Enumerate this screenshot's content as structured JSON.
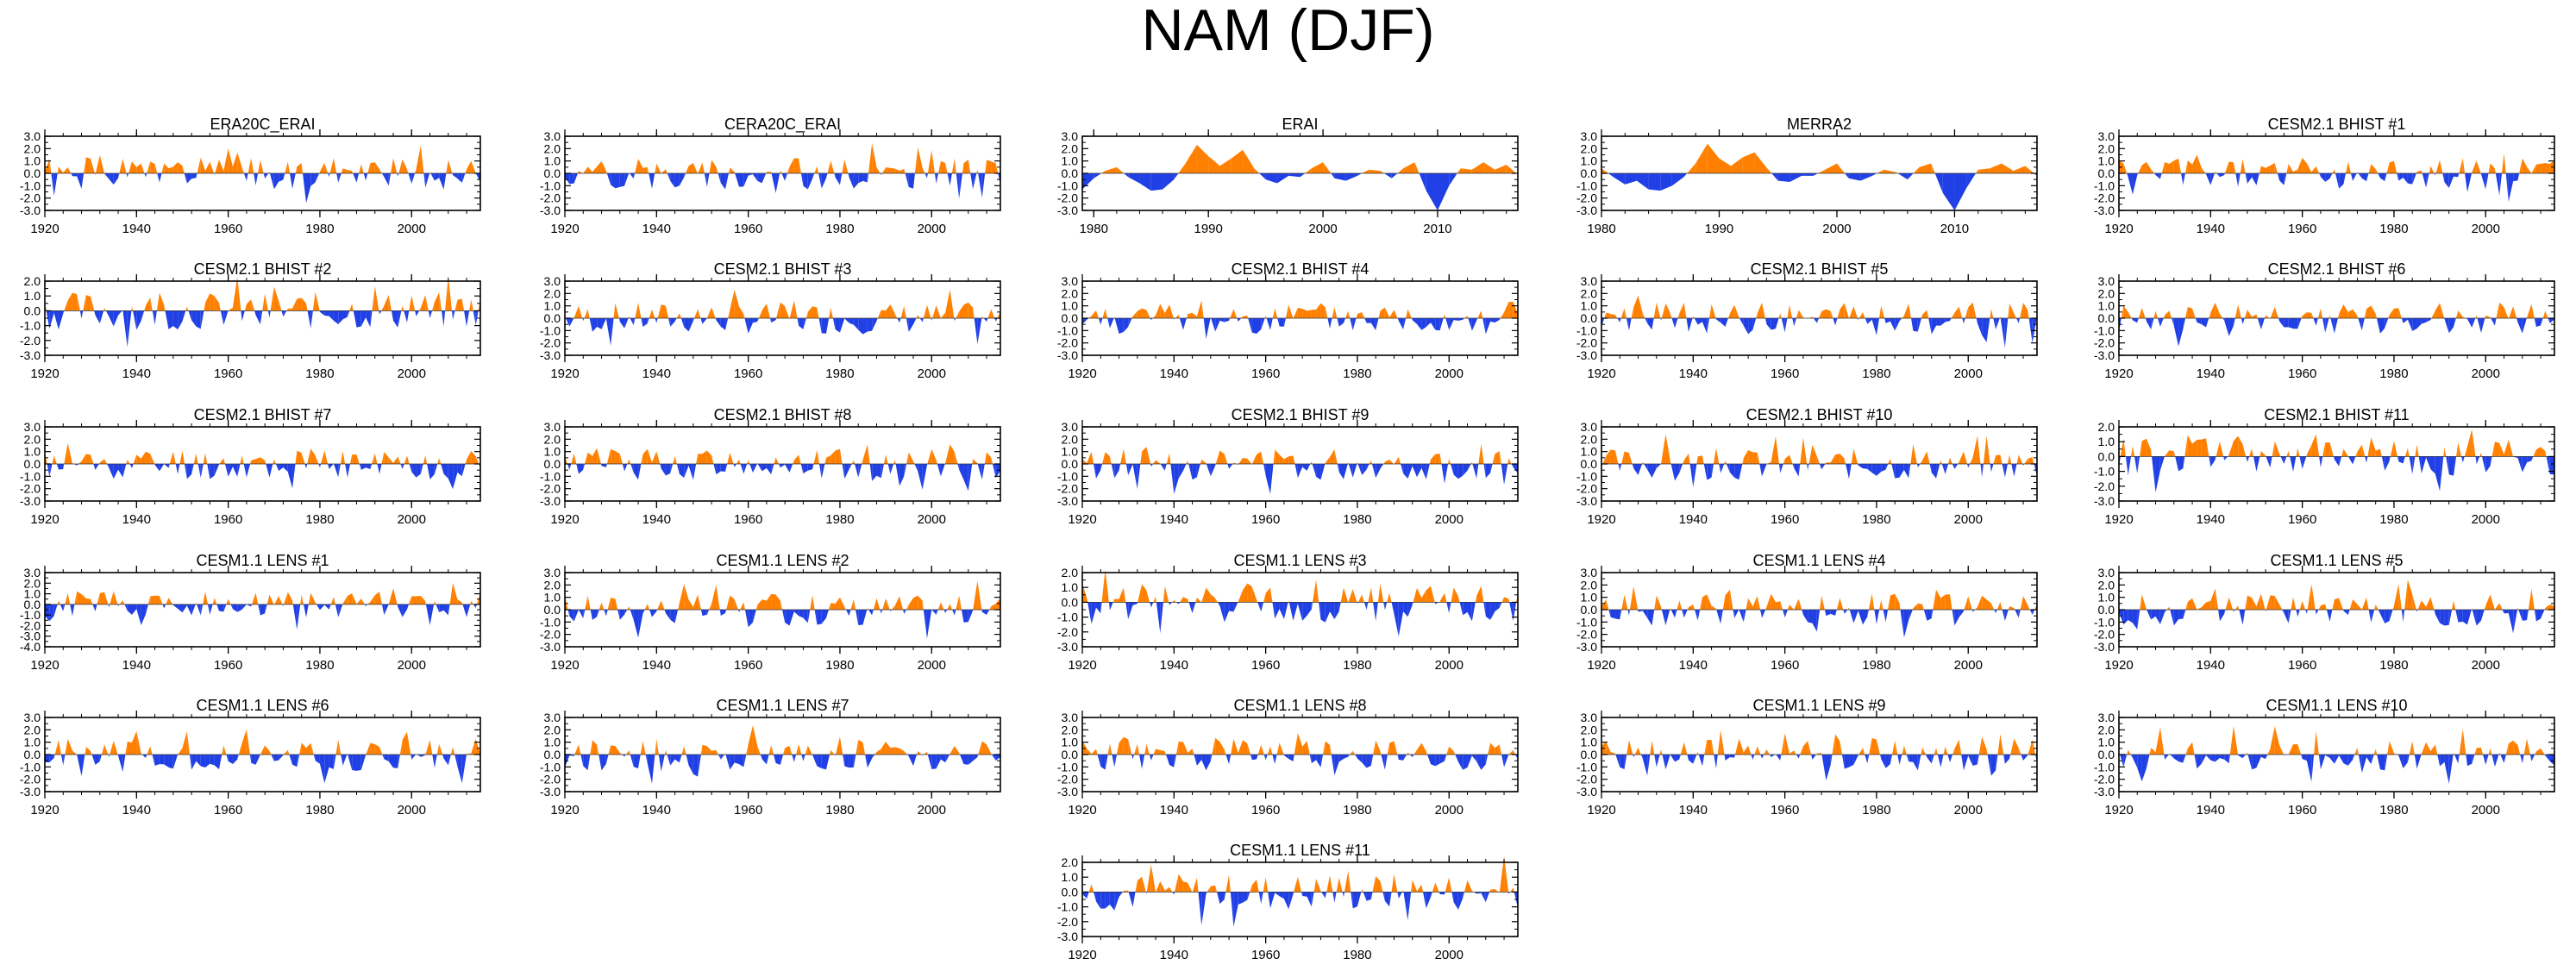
{
  "title": "NAM (DJF)",
  "colors": {
    "positive": "#ff8000",
    "negative": "#2040e6",
    "axis": "#000000"
  },
  "chart_data": [
    {
      "type": "area",
      "title": "ERA20C_ERAI",
      "x_range": [
        1920,
        2015
      ],
      "xticks": [
        1920,
        1940,
        1960,
        1980,
        2000
      ],
      "ylim": [
        -3,
        3
      ],
      "yticks": [
        -3,
        -2,
        -1,
        0,
        1,
        2,
        3
      ],
      "seed": 1
    },
    {
      "type": "area",
      "title": "CERA20C_ERAI",
      "x_range": [
        1920,
        2015
      ],
      "xticks": [
        1920,
        1940,
        1960,
        1980,
        2000
      ],
      "ylim": [
        -3,
        3
      ],
      "yticks": [
        -3,
        -2,
        -1,
        0,
        1,
        2,
        3
      ],
      "seed": 2
    },
    {
      "type": "area",
      "title": "ERAI",
      "x_range": [
        1979,
        2017
      ],
      "xticks": [
        1980,
        1990,
        2000,
        2010
      ],
      "ylim": [
        -3,
        3
      ],
      "yticks": [
        -3,
        -2,
        -1,
        0,
        1,
        2,
        3
      ],
      "values": [
        -1.3,
        -0.4,
        0.2,
        0.5,
        -0.3,
        -0.8,
        -1.4,
        -1.3,
        -0.5,
        0.8,
        2.3,
        1.4,
        0.6,
        1.2,
        1.9,
        0.4,
        -0.5,
        -0.8,
        -0.2,
        -0.3,
        0.4,
        0.9,
        -0.4,
        -0.6,
        -0.2,
        0.3,
        0.2,
        -0.4,
        0.4,
        0.9,
        -1.4,
        -3.0,
        -1.0,
        0.4,
        0.3,
        0.9,
        0.3,
        0.7,
        -0.1
      ]
    },
    {
      "type": "area",
      "title": "MERRA2",
      "x_range": [
        1980,
        2017
      ],
      "xticks": [
        1980,
        1990,
        2000,
        2010
      ],
      "ylim": [
        -3,
        3
      ],
      "yticks": [
        -3,
        -2,
        -1,
        0,
        1,
        2,
        3
      ],
      "values": [
        0.4,
        -0.3,
        -0.9,
        -0.6,
        -1.3,
        -1.4,
        -1.0,
        -0.3,
        0.8,
        2.4,
        1.2,
        0.6,
        1.3,
        1.7,
        0.5,
        -0.6,
        -0.7,
        -0.2,
        -0.2,
        0.3,
        0.8,
        -0.4,
        -0.6,
        -0.2,
        0.3,
        0.1,
        -0.5,
        0.5,
        0.8,
        -1.6,
        -3.0,
        -1.2,
        0.3,
        0.4,
        0.8,
        0.2,
        0.6,
        -0.2
      ]
    },
    {
      "type": "area",
      "title": "CESM2.1 BHIST #1",
      "x_range": [
        1920,
        2015
      ],
      "xticks": [
        1920,
        1940,
        1960,
        1980,
        2000
      ],
      "ylim": [
        -3,
        3
      ],
      "yticks": [
        -3,
        -2,
        -1,
        0,
        1,
        2,
        3
      ],
      "seed": 5
    },
    {
      "type": "area",
      "title": "CESM2.1 BHIST #2",
      "x_range": [
        1920,
        2015
      ],
      "xticks": [
        1920,
        1940,
        1960,
        1980,
        2000
      ],
      "ylim": [
        -3,
        2
      ],
      "yticks": [
        -3,
        -2,
        -1,
        0,
        1,
        2
      ],
      "seed": 6
    },
    {
      "type": "area",
      "title": "CESM2.1 BHIST #3",
      "x_range": [
        1920,
        2015
      ],
      "xticks": [
        1920,
        1940,
        1960,
        1980,
        2000
      ],
      "ylim": [
        -3,
        3
      ],
      "yticks": [
        -3,
        -2,
        -1,
        0,
        1,
        2,
        3
      ],
      "seed": 7
    },
    {
      "type": "area",
      "title": "CESM2.1 BHIST #4",
      "x_range": [
        1920,
        2015
      ],
      "xticks": [
        1920,
        1940,
        1960,
        1980,
        2000
      ],
      "ylim": [
        -3,
        3
      ],
      "yticks": [
        -3,
        -2,
        -1,
        0,
        1,
        2,
        3
      ],
      "seed": 8
    },
    {
      "type": "area",
      "title": "CESM2.1 BHIST #5",
      "x_range": [
        1920,
        2015
      ],
      "xticks": [
        1920,
        1940,
        1960,
        1980,
        2000
      ],
      "ylim": [
        -3,
        3
      ],
      "yticks": [
        -3,
        -2,
        -1,
        0,
        1,
        2,
        3
      ],
      "seed": 9
    },
    {
      "type": "area",
      "title": "CESM2.1 BHIST #6",
      "x_range": [
        1920,
        2015
      ],
      "xticks": [
        1920,
        1940,
        1960,
        1980,
        2000
      ],
      "ylim": [
        -3,
        3
      ],
      "yticks": [
        -3,
        -2,
        -1,
        0,
        1,
        2,
        3
      ],
      "seed": 10
    },
    {
      "type": "area",
      "title": "CESM2.1 BHIST #7",
      "x_range": [
        1920,
        2015
      ],
      "xticks": [
        1920,
        1940,
        1960,
        1980,
        2000
      ],
      "ylim": [
        -3,
        3
      ],
      "yticks": [
        -3,
        -2,
        -1,
        0,
        1,
        2,
        3
      ],
      "seed": 11
    },
    {
      "type": "area",
      "title": "CESM2.1 BHIST #8",
      "x_range": [
        1920,
        2015
      ],
      "xticks": [
        1920,
        1940,
        1960,
        1980,
        2000
      ],
      "ylim": [
        -3,
        3
      ],
      "yticks": [
        -3,
        -2,
        -1,
        0,
        1,
        2,
        3
      ],
      "seed": 12
    },
    {
      "type": "area",
      "title": "CESM2.1 BHIST #9",
      "x_range": [
        1920,
        2015
      ],
      "xticks": [
        1920,
        1940,
        1960,
        1980,
        2000
      ],
      "ylim": [
        -3,
        3
      ],
      "yticks": [
        -3,
        -2,
        -1,
        0,
        1,
        2,
        3
      ],
      "seed": 13
    },
    {
      "type": "area",
      "title": "CESM2.1 BHIST #10",
      "x_range": [
        1920,
        2015
      ],
      "xticks": [
        1920,
        1940,
        1960,
        1980,
        2000
      ],
      "ylim": [
        -3,
        3
      ],
      "yticks": [
        -3,
        -2,
        -1,
        0,
        1,
        2,
        3
      ],
      "seed": 14
    },
    {
      "type": "area",
      "title": "CESM2.1 BHIST #11",
      "x_range": [
        1920,
        2015
      ],
      "xticks": [
        1920,
        1940,
        1960,
        1980,
        2000
      ],
      "ylim": [
        -3,
        2
      ],
      "yticks": [
        -3,
        -2,
        -1,
        0,
        1,
        2
      ],
      "seed": 15
    },
    {
      "type": "area",
      "title": "CESM1.1 LENS #1",
      "x_range": [
        1920,
        2015
      ],
      "xticks": [
        1920,
        1940,
        1960,
        1980,
        2000
      ],
      "ylim": [
        -4,
        3
      ],
      "yticks": [
        -4,
        -3,
        -2,
        -1,
        0,
        1,
        2,
        3
      ],
      "seed": 16
    },
    {
      "type": "area",
      "title": "CESM1.1 LENS #2",
      "x_range": [
        1920,
        2015
      ],
      "xticks": [
        1920,
        1940,
        1960,
        1980,
        2000
      ],
      "ylim": [
        -3,
        3
      ],
      "yticks": [
        -3,
        -2,
        -1,
        0,
        1,
        2,
        3
      ],
      "seed": 17
    },
    {
      "type": "area",
      "title": "CESM1.1 LENS #3",
      "x_range": [
        1920,
        2015
      ],
      "xticks": [
        1920,
        1940,
        1960,
        1980,
        2000
      ],
      "ylim": [
        -3,
        2
      ],
      "yticks": [
        -3,
        -2,
        -1,
        0,
        1,
        2
      ],
      "seed": 18
    },
    {
      "type": "area",
      "title": "CESM1.1 LENS #4",
      "x_range": [
        1920,
        2015
      ],
      "xticks": [
        1920,
        1940,
        1960,
        1980,
        2000
      ],
      "ylim": [
        -3,
        3
      ],
      "yticks": [
        -3,
        -2,
        -1,
        0,
        1,
        2,
        3
      ],
      "seed": 19
    },
    {
      "type": "area",
      "title": "CESM1.1 LENS #5",
      "x_range": [
        1920,
        2015
      ],
      "xticks": [
        1920,
        1940,
        1960,
        1980,
        2000
      ],
      "ylim": [
        -3,
        3
      ],
      "yticks": [
        -3,
        -2,
        -1,
        0,
        1,
        2,
        3
      ],
      "seed": 20
    },
    {
      "type": "area",
      "title": "CESM1.1 LENS #6",
      "x_range": [
        1920,
        2015
      ],
      "xticks": [
        1920,
        1940,
        1960,
        1980,
        2000
      ],
      "ylim": [
        -3,
        3
      ],
      "yticks": [
        -3,
        -2,
        -1,
        0,
        1,
        2,
        3
      ],
      "seed": 21
    },
    {
      "type": "area",
      "title": "CESM1.1 LENS #7",
      "x_range": [
        1920,
        2015
      ],
      "xticks": [
        1920,
        1940,
        1960,
        1980,
        2000
      ],
      "ylim": [
        -3,
        3
      ],
      "yticks": [
        -3,
        -2,
        -1,
        0,
        1,
        2,
        3
      ],
      "seed": 22
    },
    {
      "type": "area",
      "title": "CESM1.1 LENS #8",
      "x_range": [
        1920,
        2015
      ],
      "xticks": [
        1920,
        1940,
        1960,
        1980,
        2000
      ],
      "ylim": [
        -3,
        3
      ],
      "yticks": [
        -3,
        -2,
        -1,
        0,
        1,
        2,
        3
      ],
      "seed": 23
    },
    {
      "type": "area",
      "title": "CESM1.1 LENS #9",
      "x_range": [
        1920,
        2015
      ],
      "xticks": [
        1920,
        1940,
        1960,
        1980,
        2000
      ],
      "ylim": [
        -3,
        3
      ],
      "yticks": [
        -3,
        -2,
        -1,
        0,
        1,
        2,
        3
      ],
      "seed": 24
    },
    {
      "type": "area",
      "title": "CESM1.1 LENS #10",
      "x_range": [
        1920,
        2015
      ],
      "xticks": [
        1920,
        1940,
        1960,
        1980,
        2000
      ],
      "ylim": [
        -3,
        3
      ],
      "yticks": [
        -3,
        -2,
        -1,
        0,
        1,
        2,
        3
      ],
      "seed": 25
    },
    {
      "type": "area",
      "title": "CESM1.1 LENS #11",
      "x_range": [
        1920,
        2015
      ],
      "xticks": [
        1920,
        1940,
        1960,
        1980,
        2000
      ],
      "ylim": [
        -3,
        2
      ],
      "yticks": [
        -3,
        -2,
        -1,
        0,
        1,
        2
      ],
      "seed": 26
    }
  ]
}
